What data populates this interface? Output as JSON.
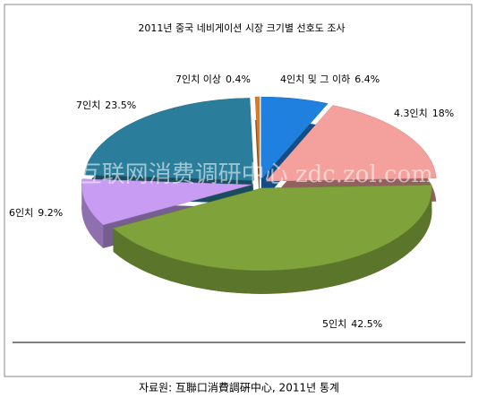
{
  "chart_data": {
    "type": "pie",
    "title": "2011년 중국 네비게이션 시장 크기별 선호도 조사",
    "categories": [
      "4인치 및 그 이하",
      "4.3인치",
      "5인치",
      "6인치",
      "7인치",
      "7인치 이상"
    ],
    "values": [
      6.4,
      18,
      42.5,
      9.2,
      23.5,
      0.4
    ],
    "value_labels": [
      "6.4%",
      "18%",
      "42.5%",
      "9.2%",
      "23.5%",
      "0.4%"
    ],
    "colors": [
      "#1f80e0",
      "#f4a09c",
      "#7fa23a",
      "#c79cf2",
      "#2a7e9c",
      "#e07a22"
    ],
    "watermark": "ZDC 互联网消费调研中心 zdc.zol.com.cn",
    "source": "자료원: 互聯口消費調硏中心, 2011년 통계"
  }
}
